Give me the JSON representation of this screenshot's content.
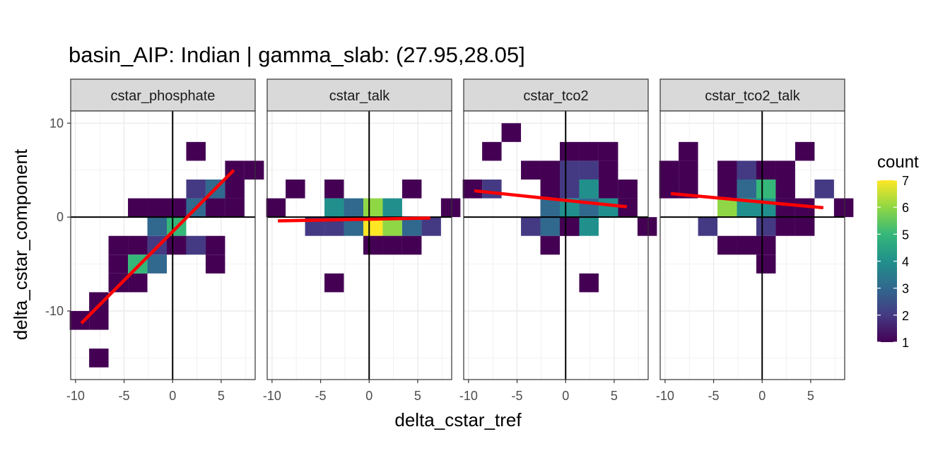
{
  "chart_data": {
    "type": "heatmap",
    "title": "basin_AIP: Indian | gamma_slab:  (27.95,28.05]",
    "xlabel": "delta_cstar_tref",
    "ylabel": "delta_cstar_component",
    "xlim": [
      -10.5,
      8.5
    ],
    "ylim": [
      -17.3,
      11.3
    ],
    "xticks": [
      -10,
      -5,
      0,
      5
    ],
    "xtick_labels": [
      "-10",
      "-5",
      "0",
      "5"
    ],
    "yticks": [
      -10,
      0,
      10
    ],
    "ytick_labels": [
      "-10",
      "0",
      "10"
    ],
    "bin_width": 2,
    "grid": true,
    "legend": {
      "title": "count",
      "position": "right",
      "range": [
        1,
        7
      ],
      "tick_values": [
        1,
        2,
        3,
        4,
        5,
        6,
        7
      ],
      "tick_labels": [
        "1",
        "2",
        "3",
        "4",
        "5",
        "6",
        "7"
      ],
      "colors": [
        "#440154",
        "#443a83",
        "#31688e",
        "#21908c",
        "#35b779",
        "#8fd744",
        "#fde725"
      ]
    },
    "fit_line_color": "#ff0000",
    "panels": [
      {
        "name": "cstar_phosphate",
        "fit": {
          "x": [
            -9.4,
            6.3
          ],
          "y": [
            -11.3,
            5.0
          ]
        },
        "cells": [
          {
            "x": -9.6,
            "y": -11.0,
            "count": 1
          },
          {
            "x": -7.6,
            "y": -11.0,
            "count": 1
          },
          {
            "x": -7.6,
            "y": -9.0,
            "count": 1
          },
          {
            "x": -7.6,
            "y": -15.0,
            "count": 1
          },
          {
            "x": -5.6,
            "y": -7.0,
            "count": 1
          },
          {
            "x": -3.6,
            "y": -7.0,
            "count": 1
          },
          {
            "x": -5.6,
            "y": -5.0,
            "count": 1
          },
          {
            "x": -5.6,
            "y": -3.0,
            "count": 1
          },
          {
            "x": -3.6,
            "y": -3.0,
            "count": 1
          },
          {
            "x": -3.6,
            "y": -5.0,
            "count": 5
          },
          {
            "x": -1.6,
            "y": -5.0,
            "count": 3
          },
          {
            "x": -1.6,
            "y": -3.0,
            "count": 2
          },
          {
            "x": -1.6,
            "y": -1.0,
            "count": 3
          },
          {
            "x": 0.4,
            "y": -1.0,
            "count": 5
          },
          {
            "x": 0.4,
            "y": -3.0,
            "count": 1
          },
          {
            "x": 2.4,
            "y": -3.0,
            "count": 2
          },
          {
            "x": 4.4,
            "y": -3.0,
            "count": 1
          },
          {
            "x": 4.4,
            "y": -5.0,
            "count": 1
          },
          {
            "x": 0.4,
            "y": 1.0,
            "count": 1
          },
          {
            "x": -1.6,
            "y": 1.0,
            "count": 1
          },
          {
            "x": -3.6,
            "y": 1.0,
            "count": 1
          },
          {
            "x": 2.4,
            "y": 1.0,
            "count": 3
          },
          {
            "x": 4.4,
            "y": 1.0,
            "count": 1
          },
          {
            "x": 6.4,
            "y": 1.0,
            "count": 1
          },
          {
            "x": 2.4,
            "y": 3.0,
            "count": 2
          },
          {
            "x": 4.4,
            "y": 3.0,
            "count": 3
          },
          {
            "x": 6.4,
            "y": 3.0,
            "count": 1
          },
          {
            "x": 6.4,
            "y": 5.0,
            "count": 1
          },
          {
            "x": 8.4,
            "y": 5.0,
            "count": 1
          },
          {
            "x": 2.4,
            "y": 7.0,
            "count": 1
          }
        ]
      },
      {
        "name": "cstar_talk",
        "fit": {
          "x": [
            -9.4,
            6.3
          ],
          "y": [
            -0.4,
            -0.1
          ]
        },
        "cells": [
          {
            "x": -9.6,
            "y": 1.0,
            "count": 1
          },
          {
            "x": -7.6,
            "y": 3.0,
            "count": 1
          },
          {
            "x": -3.6,
            "y": 3.0,
            "count": 1
          },
          {
            "x": 4.4,
            "y": 3.0,
            "count": 1
          },
          {
            "x": -5.6,
            "y": -1.0,
            "count": 2
          },
          {
            "x": -3.6,
            "y": -1.0,
            "count": 2
          },
          {
            "x": -3.6,
            "y": 1.0,
            "count": 4
          },
          {
            "x": -1.6,
            "y": 1.0,
            "count": 3
          },
          {
            "x": 0.4,
            "y": 1.0,
            "count": 6
          },
          {
            "x": 2.4,
            "y": 1.0,
            "count": 4
          },
          {
            "x": -1.6,
            "y": -1.0,
            "count": 3
          },
          {
            "x": 0.4,
            "y": -1.0,
            "count": 7
          },
          {
            "x": 2.4,
            "y": -1.0,
            "count": 6
          },
          {
            "x": 4.4,
            "y": -1.0,
            "count": 3
          },
          {
            "x": 6.4,
            "y": -1.0,
            "count": 2
          },
          {
            "x": 8.4,
            "y": 1.0,
            "count": 1
          },
          {
            "x": 0.4,
            "y": -3.0,
            "count": 1
          },
          {
            "x": 2.4,
            "y": -3.0,
            "count": 1
          },
          {
            "x": 4.4,
            "y": -3.0,
            "count": 1
          },
          {
            "x": -3.6,
            "y": -7.0,
            "count": 1
          }
        ]
      },
      {
        "name": "cstar_tco2",
        "fit": {
          "x": [
            -9.4,
            6.3
          ],
          "y": [
            2.8,
            1.1
          ]
        },
        "cells": [
          {
            "x": -5.6,
            "y": 9.0,
            "count": 1
          },
          {
            "x": -7.6,
            "y": 7.0,
            "count": 1
          },
          {
            "x": 0.4,
            "y": 7.0,
            "count": 1
          },
          {
            "x": 2.4,
            "y": 7.0,
            "count": 1
          },
          {
            "x": 4.4,
            "y": 7.0,
            "count": 1
          },
          {
            "x": -3.6,
            "y": 5.0,
            "count": 1
          },
          {
            "x": -1.6,
            "y": 5.0,
            "count": 1
          },
          {
            "x": 0.4,
            "y": 5.0,
            "count": 2
          },
          {
            "x": 2.4,
            "y": 5.0,
            "count": 2
          },
          {
            "x": 4.4,
            "y": 5.0,
            "count": 1
          },
          {
            "x": -9.6,
            "y": 3.0,
            "count": 1
          },
          {
            "x": -7.6,
            "y": 3.0,
            "count": 2
          },
          {
            "x": -1.6,
            "y": 3.0,
            "count": 1
          },
          {
            "x": 0.4,
            "y": 3.0,
            "count": 2
          },
          {
            "x": 2.4,
            "y": 3.0,
            "count": 4
          },
          {
            "x": 4.4,
            "y": 3.0,
            "count": 1
          },
          {
            "x": 6.4,
            "y": 3.0,
            "count": 1
          },
          {
            "x": -1.6,
            "y": 1.0,
            "count": 3
          },
          {
            "x": 0.4,
            "y": 1.0,
            "count": 4
          },
          {
            "x": 2.4,
            "y": 1.0,
            "count": 3
          },
          {
            "x": 4.4,
            "y": 1.0,
            "count": 2
          },
          {
            "x": -1.6,
            "y": -1.0,
            "count": 3
          },
          {
            "x": 0.4,
            "y": -1.0,
            "count": 1
          },
          {
            "x": 6.4,
            "y": 1.0,
            "count": 1
          },
          {
            "x": 4.4,
            "y": 1.0,
            "count": 4
          },
          {
            "x": -3.6,
            "y": -1.0,
            "count": 2
          },
          {
            "x": 0.4,
            "y": -1.0,
            "count": 1
          },
          {
            "x": 2.4,
            "y": -1.0,
            "count": 4
          },
          {
            "x": 8.4,
            "y": -1.0,
            "count": 1
          },
          {
            "x": -1.6,
            "y": -3.0,
            "count": 1
          },
          {
            "x": 2.4,
            "y": -7.0,
            "count": 1
          }
        ]
      },
      {
        "name": "cstar_tco2_talk",
        "fit": {
          "x": [
            -9.4,
            6.3
          ],
          "y": [
            2.5,
            1.0
          ]
        },
        "cells": [
          {
            "x": -7.6,
            "y": 7.0,
            "count": 1
          },
          {
            "x": 4.4,
            "y": 7.0,
            "count": 1
          },
          {
            "x": -9.6,
            "y": 5.0,
            "count": 1
          },
          {
            "x": -7.6,
            "y": 5.0,
            "count": 1
          },
          {
            "x": -3.6,
            "y": 5.0,
            "count": 1
          },
          {
            "x": -1.6,
            "y": 5.0,
            "count": 2
          },
          {
            "x": 0.4,
            "y": 5.0,
            "count": 1
          },
          {
            "x": 2.4,
            "y": 5.0,
            "count": 1
          },
          {
            "x": -9.6,
            "y": 3.0,
            "count": 1
          },
          {
            "x": -7.6,
            "y": 3.0,
            "count": 1
          },
          {
            "x": -3.6,
            "y": 3.0,
            "count": 1
          },
          {
            "x": -1.6,
            "y": 3.0,
            "count": 3
          },
          {
            "x": 0.4,
            "y": 3.0,
            "count": 5
          },
          {
            "x": 2.4,
            "y": 3.0,
            "count": 1
          },
          {
            "x": 6.4,
            "y": 3.0,
            "count": 2
          },
          {
            "x": -3.6,
            "y": 1.0,
            "count": 6
          },
          {
            "x": -1.6,
            "y": 1.0,
            "count": 4
          },
          {
            "x": 0.4,
            "y": 1.0,
            "count": 4
          },
          {
            "x": 2.4,
            "y": 1.0,
            "count": 1
          },
          {
            "x": 4.4,
            "y": 1.0,
            "count": 1
          },
          {
            "x": 8.4,
            "y": 1.0,
            "count": 1
          },
          {
            "x": -5.6,
            "y": -1.0,
            "count": 2
          },
          {
            "x": 0.4,
            "y": -1.0,
            "count": 2
          },
          {
            "x": 2.4,
            "y": -1.0,
            "count": 1
          },
          {
            "x": 4.4,
            "y": -1.0,
            "count": 1
          },
          {
            "x": -3.6,
            "y": -3.0,
            "count": 1
          },
          {
            "x": -1.6,
            "y": -3.0,
            "count": 1
          },
          {
            "x": 0.4,
            "y": -3.0,
            "count": 1
          },
          {
            "x": 0.4,
            "y": -5.0,
            "count": 1
          }
        ]
      }
    ]
  }
}
